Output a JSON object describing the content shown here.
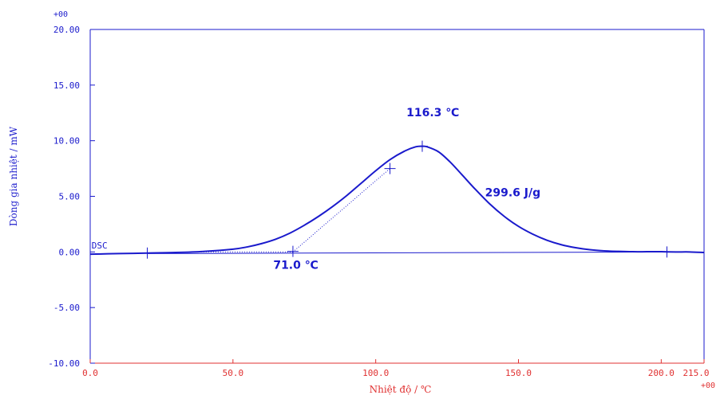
{
  "chart_data": {
    "type": "line",
    "title": "",
    "xlabel": "Nhiệt độ / ℃",
    "ylabel": "Dòng gia nhiệt / mW",
    "xlim": [
      0,
      215
    ],
    "ylim": [
      -10,
      20
    ],
    "x_exponent_label": "+00",
    "y_exponent_label": "+00",
    "x_tick_values": [
      0,
      50,
      100,
      150,
      200,
      215
    ],
    "x_tick_labels": [
      "0.0",
      "50.0",
      "100.0",
      "150.0",
      "200.0",
      "215.0"
    ],
    "y_tick_values": [
      -10,
      -5,
      0,
      5,
      10,
      15,
      20
    ],
    "y_tick_labels": [
      "-10.00",
      "-5.00",
      "0.00",
      "5.00",
      "10.00",
      "15.00",
      "20.00"
    ],
    "grid": false,
    "colors": {
      "curve": "#1a1acc",
      "y_axis_text": "#1a1acc",
      "x_axis_text": "#e03030",
      "annotation": "#1a1acc"
    },
    "series": [
      {
        "name": "DSC",
        "x": [
          0,
          10,
          20,
          30,
          40,
          50,
          55,
          60,
          65,
          70,
          75,
          80,
          85,
          90,
          95,
          100,
          105,
          110,
          114,
          116.3,
          118,
          122,
          126,
          130,
          135,
          140,
          145,
          150,
          155,
          160,
          165,
          170,
          175,
          180,
          185,
          190,
          195,
          200,
          205,
          210,
          215
        ],
        "y": [
          -0.2,
          -0.15,
          -0.1,
          -0.05,
          0.05,
          0.25,
          0.45,
          0.75,
          1.15,
          1.7,
          2.4,
          3.2,
          4.1,
          5.1,
          6.2,
          7.3,
          8.3,
          9.05,
          9.45,
          9.5,
          9.45,
          9.0,
          8.1,
          7.0,
          5.6,
          4.3,
          3.2,
          2.3,
          1.6,
          1.05,
          0.65,
          0.38,
          0.2,
          0.1,
          0.05,
          0.02,
          0.02,
          0.02,
          0.0,
          0.0,
          -0.05
        ]
      }
    ],
    "baseline": {
      "x": [
        20,
        202
      ],
      "y": [
        -0.15,
        0.0
      ]
    },
    "onset_tangent": {
      "x": [
        71,
        105
      ],
      "y": [
        0.0,
        7.5
      ]
    },
    "onset_dotted_baseline": {
      "x": [
        38,
        71
      ],
      "y": [
        0.0,
        0.0
      ]
    },
    "markers": [
      {
        "x": 20,
        "y": -0.1
      },
      {
        "x": 71,
        "y": 0.05
      },
      {
        "x": 105,
        "y": 7.5
      },
      {
        "x": 116.3,
        "y": 9.5
      },
      {
        "x": 202,
        "y": 0.0
      }
    ],
    "annotations": [
      {
        "text": "116.3 ℃",
        "x": 120,
        "y": 12.2
      },
      {
        "text": "71.0 ℃",
        "x": 72,
        "y": -1.5
      },
      {
        "text": "299.6 J/g",
        "x": 148,
        "y": 5.0
      },
      {
        "text": "DSC",
        "x": 0.5,
        "y": 0.3
      }
    ]
  }
}
